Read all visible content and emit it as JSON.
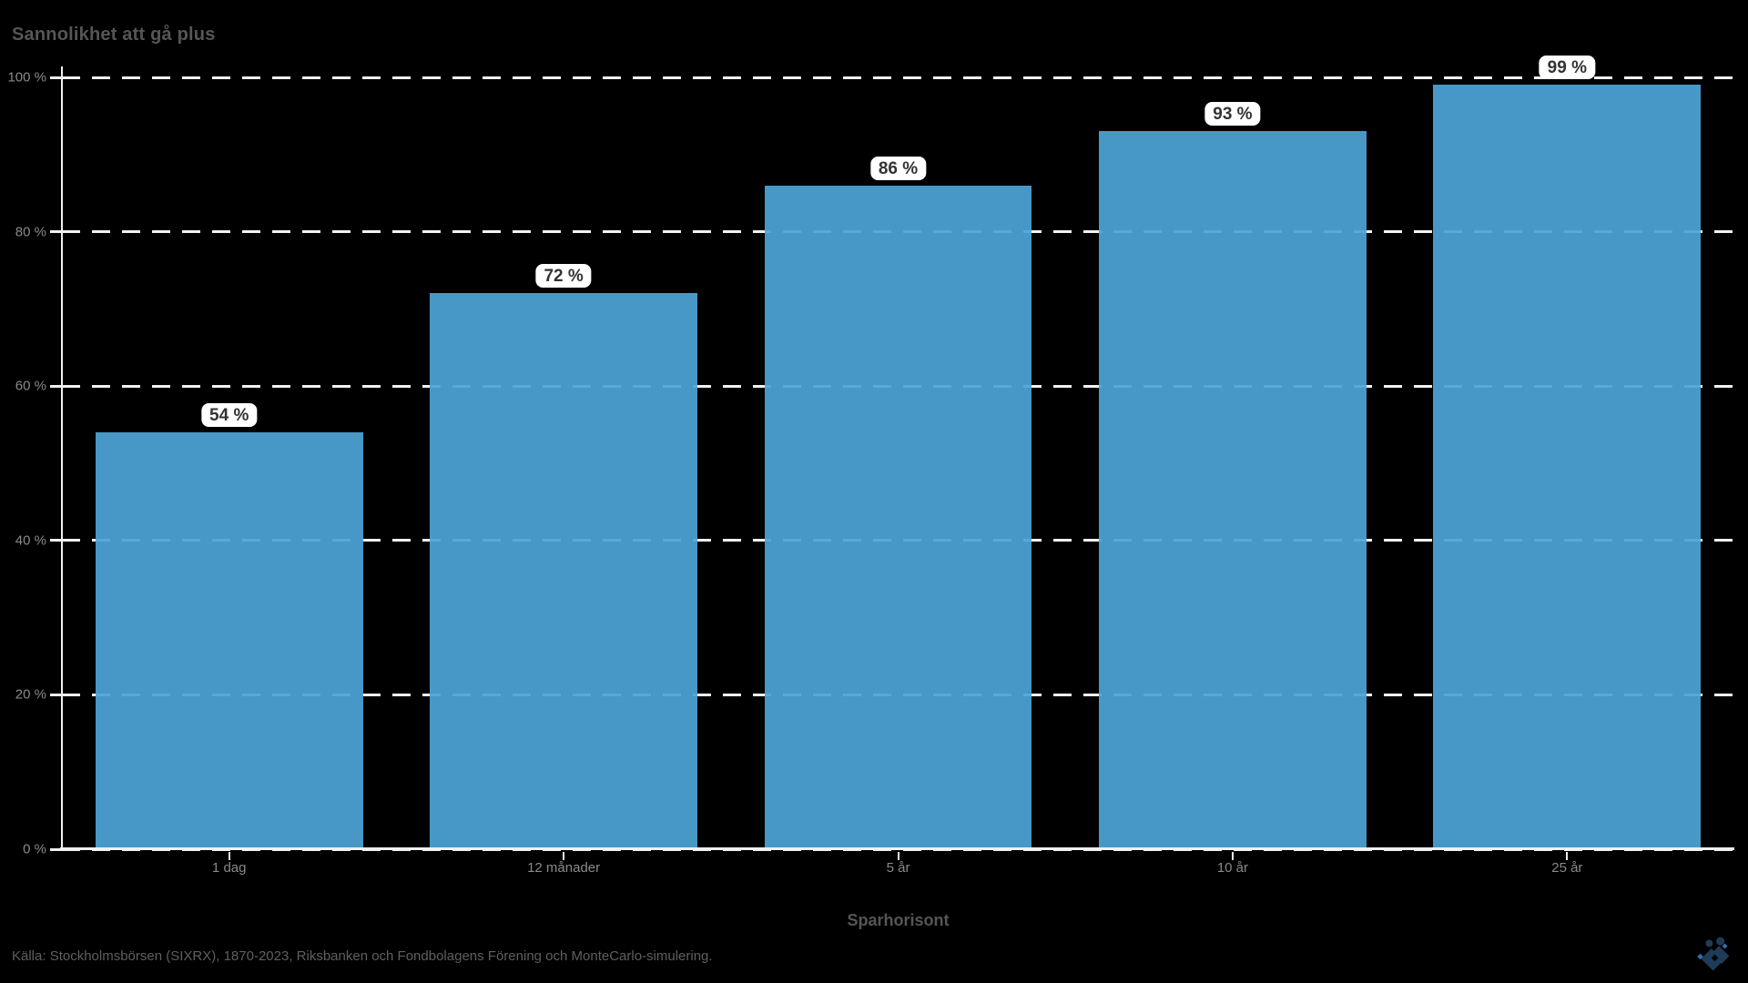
{
  "title": "Sannolikhet att gå plus",
  "colors": {
    "background": "#000000",
    "bar": "#4799c7",
    "bar_fill": "rgba(78,164,214,0.93)",
    "axis": "#f0f0f0",
    "grid": "#f2f2f2",
    "title_text": "#565656",
    "tick_text": "#8a8a8a",
    "source_text": "#5f5f5f",
    "label_pill_bg": "#ffffff",
    "label_pill_text": "#333333",
    "logo_navy": "#1e3c58",
    "logo_accent": "#2f6fa8"
  },
  "chart_data": {
    "type": "bar",
    "title": "Sannolikhet att gå plus",
    "categories": [
      "1 dag",
      "12 månader",
      "5 år",
      "10 år",
      "25 år"
    ],
    "values": [
      54,
      72,
      86,
      93,
      99
    ],
    "value_labels": [
      "54 %",
      "72 %",
      "86 %",
      "93 %",
      "99 %"
    ],
    "xlabel": "Sparhorisont",
    "ylabel": "",
    "ylim": [
      0,
      100
    ],
    "yticks": [
      0,
      20,
      40,
      60,
      80,
      100
    ],
    "ytick_labels": [
      "0 %",
      "20 %",
      "40 %",
      "60 %",
      "80 %",
      "100 %"
    ],
    "grid": "horizontal-dashed",
    "legend_position": "none"
  },
  "footer": {
    "source": "Källa: Stockholmsbörsen (SIXRX), 1870-2023, Riksbanken och Fondbolagens Förening och MonteCarlo-simulering.",
    "logo_name": "brand-logo-icon"
  }
}
